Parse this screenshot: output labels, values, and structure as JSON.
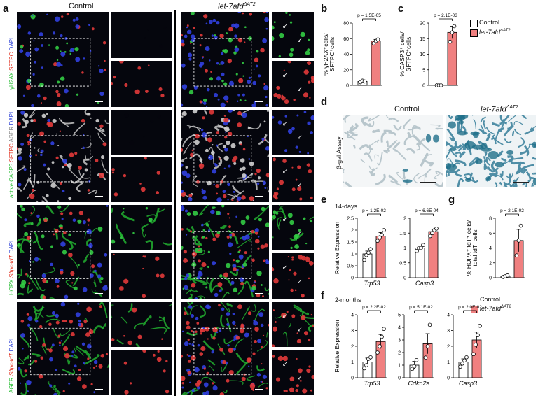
{
  "figure": {
    "panel_letters": [
      "a",
      "b",
      "c",
      "d",
      "e",
      "f",
      "g"
    ],
    "panel_a": {
      "col_headers": {
        "control": "Control",
        "mutant_main": "let-7afd",
        "mutant_sup": "ΔAT2"
      },
      "row_labels": [
        {
          "parts": [
            "γH2AX ",
            "SFTPC ",
            "DAPI"
          ]
        },
        {
          "parts": [
            "active CASP3 ",
            "SFTPC ",
            "AGER ",
            "DAPI"
          ]
        },
        {
          "parts": [
            "HOPX ",
            "Sftpc-tdT ",
            "DAPI"
          ]
        },
        {
          "parts": [
            "AGER ",
            "Sftpc-tdT ",
            "DAPI"
          ]
        }
      ]
    },
    "panel_d": {
      "control": "Control",
      "mutant_main": "let-7afd",
      "mutant_sup": "ΔAT2",
      "ylabel": "β-gal Assay"
    },
    "legend": {
      "control": "Control",
      "mutant_main": "let-7afd",
      "mutant_sup": "ΔAT2"
    },
    "panel_e": {
      "timepoint": "14-days"
    },
    "panel_f": {
      "timepoint": "2-months"
    },
    "colors": {
      "control_fill": "#ffffff",
      "mutant_fill": "#f08080",
      "bar_edge": "#000000"
    }
  },
  "chart_data": [
    {
      "id": "b",
      "type": "bar",
      "ylabel_lines": [
        "% γH2AX⁺cells/",
        "SFTPC⁺cells"
      ],
      "ylim": [
        0,
        80
      ],
      "yticks": [
        0,
        20,
        40,
        60,
        80
      ],
      "categories": [
        "Control",
        "let-7afd ΔAT2"
      ],
      "values": [
        5,
        57
      ],
      "errors": [
        1.5,
        2
      ],
      "points": [
        [
          4,
          6,
          5
        ],
        [
          54,
          57,
          59
        ]
      ],
      "pvalue": "p = 1.5E-05"
    },
    {
      "id": "c",
      "type": "bar",
      "ylabel_lines": [
        "% CASP3⁺ cells/",
        "SFTPC⁺cells"
      ],
      "ylim": [
        0,
        20
      ],
      "yticks": [
        0,
        5,
        10,
        15,
        20
      ],
      "categories": [
        "Control",
        "let-7afd ΔAT2"
      ],
      "values": [
        0,
        17
      ],
      "errors": [
        0,
        2
      ],
      "points": [
        [
          0,
          0,
          0
        ],
        [
          14,
          17,
          19
        ]
      ],
      "pvalue": "p = 2.1E-03"
    },
    {
      "id": "e1",
      "type": "bar",
      "xlabel": "Trp53",
      "ylabel": "Relative Expression",
      "ylim": [
        0,
        2.5
      ],
      "yticks": [
        0.0,
        0.5,
        1.0,
        1.5,
        2.0,
        2.5
      ],
      "categories": [
        "Control",
        "let-7afd ΔAT2"
      ],
      "values": [
        1.0,
        1.75
      ],
      "errors": [
        0.12,
        0.15
      ],
      "points": [
        [
          0.75,
          0.95,
          1.05,
          1.2
        ],
        [
          1.55,
          1.7,
          1.8,
          2.0
        ]
      ],
      "pvalue": "p = 1.2E-02"
    },
    {
      "id": "e2",
      "type": "bar",
      "xlabel": "Casp3",
      "ylim": [
        0,
        2.0
      ],
      "yticks": [
        0.0,
        0.5,
        1.0,
        1.5,
        2.0
      ],
      "categories": [
        "Control",
        "let-7afd ΔAT2"
      ],
      "values": [
        1.0,
        1.55
      ],
      "errors": [
        0.06,
        0.08
      ],
      "points": [
        [
          0.9,
          1.0,
          1.0,
          1.1
        ],
        [
          1.4,
          1.5,
          1.6,
          1.65
        ]
      ],
      "pvalue": "p = 6.6E-04"
    },
    {
      "id": "g",
      "type": "bar",
      "ylabel_lines": [
        "% HOPX⁺ tdT⁺ cells/",
        "total tdT⁺cells"
      ],
      "ylim": [
        0,
        8
      ],
      "yticks": [
        0,
        2,
        4,
        6,
        8
      ],
      "categories": [
        "Control",
        "let-7afd ΔAT2"
      ],
      "values": [
        0.2,
        5
      ],
      "errors": [
        0.1,
        1.5
      ],
      "points": [
        [
          0.1,
          0.2,
          0.3
        ],
        [
          3.0,
          5.0,
          7.0
        ]
      ],
      "pvalue": "p = 2.1E-02"
    },
    {
      "id": "f1",
      "type": "bar",
      "xlabel": "Trp53",
      "ylabel": "Relative Expression",
      "ylim": [
        0,
        4
      ],
      "yticks": [
        0,
        1,
        2,
        3,
        4
      ],
      "categories": [
        "Control",
        "let-7afd ΔAT2"
      ],
      "values": [
        1.0,
        2.3
      ],
      "errors": [
        0.25,
        0.45
      ],
      "points": [
        [
          0.6,
          0.8,
          1.2,
          1.3
        ],
        [
          1.6,
          2.0,
          2.6,
          3.1
        ]
      ],
      "pvalue": "p = 2.2E-02"
    },
    {
      "id": "f2",
      "type": "bar",
      "xlabel": "Cdkn2a",
      "ylim": [
        0,
        5
      ],
      "yticks": [
        0,
        1,
        2,
        3,
        4,
        5
      ],
      "categories": [
        "Control",
        "let-7afd ΔAT2"
      ],
      "values": [
        1.0,
        2.7
      ],
      "errors": [
        0.3,
        0.8
      ],
      "points": [
        [
          0.7,
          0.9,
          1.4
        ],
        [
          1.6,
          2.5,
          4.2
        ]
      ],
      "pvalue": "p = 5.1E-02"
    },
    {
      "id": "f3",
      "type": "bar",
      "xlabel": "Casp3",
      "ylim": [
        0,
        4
      ],
      "yticks": [
        0,
        1,
        2,
        3,
        4
      ],
      "categories": [
        "Control",
        "let-7afd ΔAT2"
      ],
      "values": [
        1.0,
        2.4
      ],
      "errors": [
        0.2,
        0.5
      ],
      "points": [
        [
          0.7,
          0.9,
          1.1,
          1.3
        ],
        [
          1.5,
          2.1,
          2.7,
          3.3
        ]
      ],
      "pvalue": "p = 2.0E-02"
    }
  ]
}
